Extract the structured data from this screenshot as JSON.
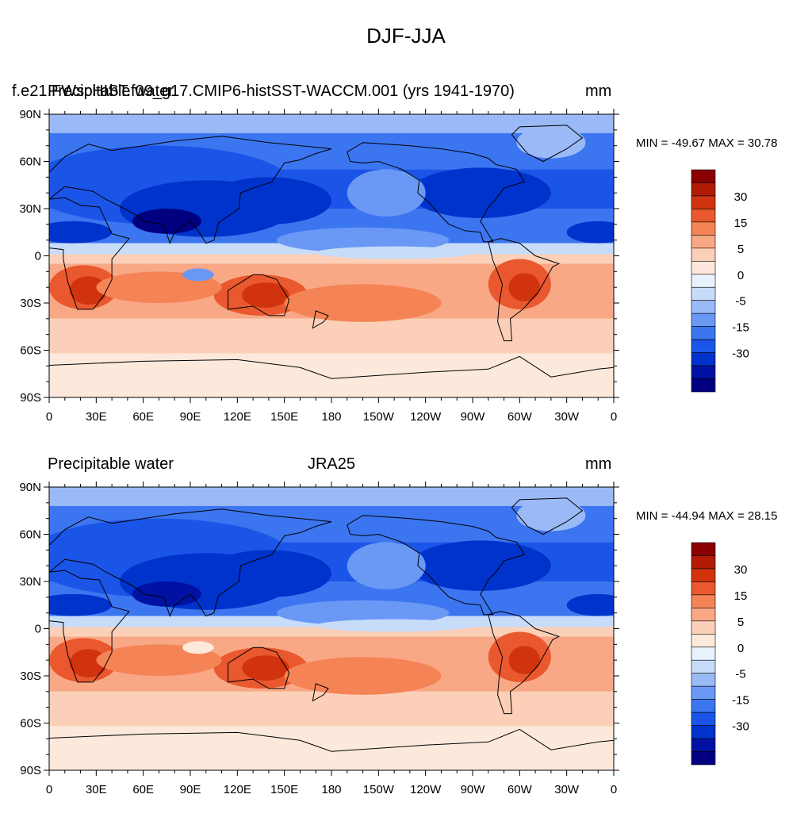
{
  "title": "DJF-JJA",
  "colors": {
    "levels": [
      "#000080",
      "#0011a4",
      "#0033cc",
      "#1a55e8",
      "#3c75f0",
      "#6a98f5",
      "#9ab9f7",
      "#c7dcf9",
      "#e8f1fc",
      "#fde9dc",
      "#fcd0b8",
      "#f9a886",
      "#f48356",
      "#e9582e",
      "#d0330d",
      "#b11b06",
      "#8a0000"
    ]
  },
  "panels": [
    {
      "id": "top",
      "left_label": "Precipitable water",
      "center_label": "f.e21.FWscHIST.f09_g17.CMIP6-histSST-WACCM.001 (yrs 1941-1970)",
      "right_label": "mm",
      "minmax": "MIN = -49.67 MAX =  30.78"
    },
    {
      "id": "bottom",
      "left_label": "Precipitable water",
      "center_label": "JRA25",
      "right_label": "mm",
      "minmax": "MIN = -44.94 MAX =  28.15"
    }
  ],
  "axes": {
    "lon_ticks": [
      "0",
      "30E",
      "60E",
      "90E",
      "120E",
      "150E",
      "180",
      "150W",
      "120W",
      "90W",
      "60W",
      "30W",
      "0"
    ],
    "lat_ticks": [
      "90N",
      "60N",
      "30N",
      "0",
      "30S",
      "60S",
      "90S"
    ]
  },
  "colorbar": {
    "labels": [
      "30",
      "15",
      "5",
      "0",
      "-5",
      "-15",
      "-30"
    ]
  },
  "chart_data": {
    "type": "heatmap",
    "title": "DJF-JJA",
    "variable": "Precipitable water",
    "units": "mm",
    "contour_levels": [
      -40,
      -35,
      -30,
      -25,
      -20,
      -15,
      -10,
      -5,
      0,
      5,
      10,
      15,
      20,
      25,
      30,
      35
    ],
    "xlim": [
      0,
      360
    ],
    "ylim": [
      -90,
      90
    ],
    "panels": [
      {
        "name": "f.e21.FWscHIST.f09_g17.CMIP6-histSST-WACCM.001 (yrs 1941-1970)",
        "min": -49.67,
        "max": 30.78
      },
      {
        "name": "JRA25",
        "min": -44.94,
        "max": 28.15
      }
    ]
  }
}
